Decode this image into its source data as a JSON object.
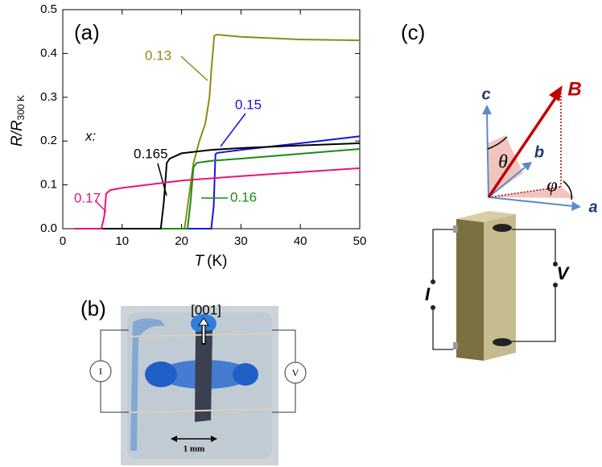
{
  "chart_data": {
    "type": "line",
    "x_label": {
      "text": "T",
      "unit": "(K)"
    },
    "y_label": {
      "text": "R/R",
      "subscript": "300 K"
    },
    "annotations": [
      "x:"
    ],
    "xlim": [
      0,
      50
    ],
    "xticks": [
      0,
      10,
      20,
      30,
      40,
      50
    ],
    "ylim": [
      0,
      0.5
    ],
    "yticks": [
      {
        "value": 0,
        "label": "0.0"
      },
      0.1,
      0.2,
      0.3,
      0.4,
      0.5
    ],
    "series": [
      {
        "name": "0.13",
        "color": "#8c8c14",
        "x": [
          2,
          20.5,
          21,
          22,
          23,
          24,
          24.7,
          25,
          25.5,
          26,
          30,
          40,
          50
        ],
        "values": [
          0,
          0,
          0.05,
          0.15,
          0.2,
          0.24,
          0.3,
          0.36,
          0.44,
          0.443,
          0.438,
          0.432,
          0.43
        ]
      },
      {
        "name": "0.15",
        "color": "#1414e0",
        "x": [
          2,
          25,
          25.4,
          25.7,
          26,
          30,
          40,
          50
        ],
        "values": [
          0,
          0,
          0.05,
          0.17,
          0.173,
          0.18,
          0.195,
          0.211
        ]
      },
      {
        "name": "0.16",
        "color": "#1a8a1a",
        "x": [
          2,
          21,
          21.5,
          22,
          22.5,
          25,
          30,
          40,
          50
        ],
        "values": [
          0,
          0,
          0.06,
          0.14,
          0.15,
          0.155,
          0.16,
          0.171,
          0.182
        ]
      },
      {
        "name": "0.165",
        "color": "#000000",
        "x": [
          2,
          16.5,
          17,
          17.5,
          18,
          20,
          25,
          30,
          40,
          50
        ],
        "values": [
          0,
          0,
          0.06,
          0.15,
          0.16,
          0.172,
          0.18,
          0.184,
          0.19,
          0.195
        ]
      },
      {
        "name": "0.17",
        "color": "#e8137f",
        "x": [
          2,
          6.5,
          7,
          7.3,
          8,
          10,
          20,
          30,
          40,
          50
        ],
        "values": [
          0,
          0,
          0.03,
          0.08,
          0.088,
          0.093,
          0.11,
          0.12,
          0.129,
          0.138
        ]
      }
    ]
  },
  "panel_labels": [
    "(a)",
    "(b)",
    "(c)"
  ],
  "photo": {
    "direction": "[001]",
    "scale_bar": "1 mm",
    "current": "I",
    "voltage": "V"
  },
  "schematic": {
    "axes": [
      "c",
      "b",
      "a"
    ],
    "field": "B",
    "angles": [
      "θ",
      "φ"
    ],
    "current": "I",
    "voltage": "V"
  }
}
